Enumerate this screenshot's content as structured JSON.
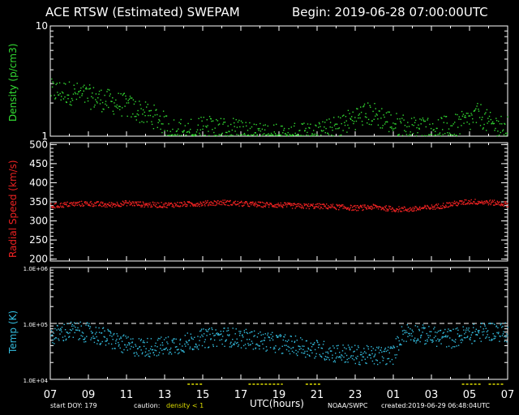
{
  "header": {
    "title": "ACE RTSW (Estimated) SWEPAM",
    "begin": "Begin: 2019-06-28 07:00:00UTC"
  },
  "footer": {
    "start_doy": "start DOY: 179",
    "caution_label": "caution:",
    "caution_value": "density < 1",
    "xlabel": "UTC(hours)",
    "source": "NOAA/SWPC",
    "created": "created:2019-06-29 06:48:04UTC"
  },
  "colors": {
    "density": "#33dd33",
    "speed": "#ee2222",
    "temp": "#33bbdd",
    "caution": "#dddd00",
    "frame": "#ffffff"
  },
  "chart_data": [
    {
      "type": "scatter",
      "ylabel": "Density (p/cm3)",
      "yscale": "log",
      "ylim": [
        1,
        10
      ],
      "yticks": [
        "1",
        "10"
      ],
      "x_hours_from_start": [
        0,
        2,
        4,
        6,
        8,
        10,
        12,
        14,
        16,
        18,
        20,
        22,
        24
      ],
      "x_tick_labels": [
        "07",
        "09",
        "11",
        "13",
        "15",
        "17",
        "19",
        "21",
        "23",
        "01",
        "03",
        "05",
        "07"
      ],
      "series": [
        {
          "x": [
            0,
            1,
            2,
            3,
            4,
            5,
            5.5,
            6,
            7,
            8,
            9,
            10,
            11,
            12,
            13,
            14,
            15,
            16,
            16.5,
            17,
            18,
            19,
            20,
            21,
            22,
            22.5,
            23,
            24
          ],
          "y": [
            2.6,
            2.5,
            2.3,
            2.1,
            1.9,
            1.6,
            1.5,
            1.3,
            1.1,
            1.2,
            1.2,
            1.1,
            1.05,
            1.05,
            1.05,
            1.05,
            1.2,
            1.5,
            1.6,
            1.6,
            1.3,
            1.2,
            1.2,
            1.2,
            1.4,
            1.6,
            1.3,
            1.2
          ]
        }
      ]
    },
    {
      "type": "scatter",
      "ylabel": "Radial Speed (km/s)",
      "ylim": [
        195,
        505
      ],
      "yticks": [
        "200",
        "250",
        "300",
        "350",
        "400",
        "450",
        "500"
      ],
      "x_tick_labels": [
        "07",
        "09",
        "11",
        "13",
        "15",
        "17",
        "19",
        "21",
        "23",
        "01",
        "03",
        "05",
        "07"
      ],
      "series": [
        {
          "x": [
            0,
            1,
            2,
            3,
            4,
            5,
            6,
            7,
            8,
            9,
            10,
            11,
            12,
            13,
            14,
            15,
            16,
            17,
            18,
            19,
            20,
            21,
            22,
            23,
            24
          ],
          "y": [
            340,
            345,
            347,
            343,
            348,
            344,
            343,
            345,
            347,
            350,
            346,
            344,
            343,
            340,
            340,
            338,
            335,
            338,
            332,
            332,
            337,
            345,
            352,
            350,
            345
          ]
        }
      ]
    },
    {
      "type": "scatter",
      "ylabel": "Temp (K)",
      "yscale": "log",
      "ylim": [
        10000,
        1000000
      ],
      "yticks": [
        "1.0E+04",
        "1.0E+05",
        "1.0E+06"
      ],
      "reference_line": 100000,
      "x_tick_labels": [
        "07",
        "09",
        "11",
        "13",
        "15",
        "17",
        "19",
        "21",
        "23",
        "01",
        "03",
        "05",
        "07"
      ],
      "series": [
        {
          "x": [
            0,
            1,
            2,
            3,
            4,
            5,
            6,
            7,
            8,
            9,
            10,
            11,
            12,
            13,
            14,
            15,
            16,
            17,
            18,
            18.5,
            19,
            20,
            21,
            22,
            23,
            24
          ],
          "y": [
            60000,
            75000,
            70000,
            55000,
            40000,
            38000,
            40000,
            45000,
            55000,
            60000,
            55000,
            50000,
            45000,
            40000,
            35000,
            30000,
            28000,
            27000,
            28000,
            70000,
            70000,
            60000,
            55000,
            65000,
            75000,
            70000
          ]
        }
      ]
    }
  ]
}
